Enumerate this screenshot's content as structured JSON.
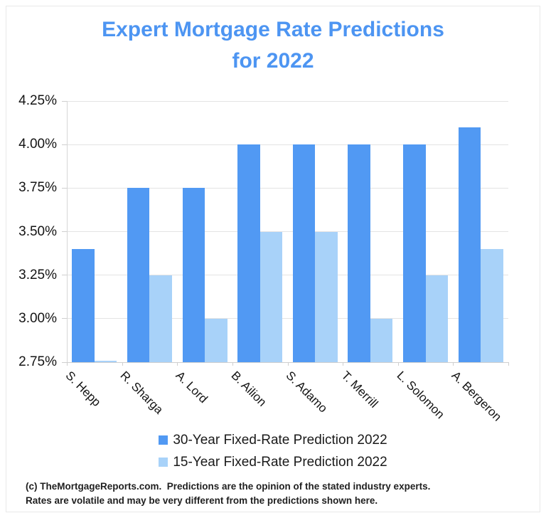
{
  "header": {
    "title_line1": "Expert Mortgage Rate Predictions",
    "title_line2": "for 2022",
    "title_color": "#4D95F2"
  },
  "chart_data": {
    "type": "bar",
    "title": "Expert Mortgage Rate Predictions for 2022",
    "categories": [
      "S. Hepp",
      "R. Sharga",
      "A. Lord",
      "B. Ailion",
      "S. Adamo",
      "T. Merrill",
      "L. Solomon",
      "A. Bergeron"
    ],
    "series": [
      {
        "name": "30-Year Fixed-Rate Prediction 2022",
        "color": "#5199F3",
        "values": [
          3.4,
          3.75,
          3.75,
          4.0,
          4.0,
          4.0,
          4.0,
          4.1
        ]
      },
      {
        "name": "15-Year Fixed-Rate Prediction 2022",
        "color": "#A8D2F9",
        "values": [
          2.75,
          3.25,
          3.0,
          3.5,
          3.5,
          3.0,
          3.25,
          3.4
        ]
      }
    ],
    "ylim": [
      2.75,
      4.25
    ],
    "yticks": [
      {
        "label": "4.25%",
        "value": 4.25
      },
      {
        "label": "4.00%",
        "value": 4.0
      },
      {
        "label": "3.75%",
        "value": 3.75
      },
      {
        "label": "3.50%",
        "value": 3.5
      },
      {
        "label": "3.25%",
        "value": 3.25
      },
      {
        "label": "3.00%",
        "value": 3.0
      },
      {
        "label": "2.75%",
        "value": 2.75
      }
    ],
    "grid": true,
    "legend_position": "bottom",
    "gridline_color": "#e4e4e4"
  },
  "footer": {
    "line1": "(c) TheMortgageReports.com.  Predictions are the opinion of the stated industry experts.",
    "line2": "Rates are volatile and may be very different from the predictions shown here."
  }
}
